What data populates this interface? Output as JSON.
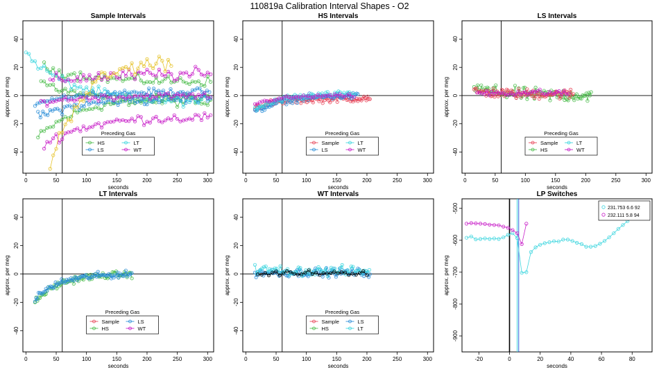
{
  "figure": {
    "title": "110819a   Calibration Interval Shapes - O2"
  },
  "chart_data": [
    {
      "type": "scatter",
      "title": "Sample Intervals",
      "xlabel": "seconds",
      "ylabel": "approx. per meg",
      "xlim": [
        -5,
        310
      ],
      "ylim": [
        -55,
        53
      ],
      "xticks": [
        0,
        50,
        100,
        150,
        200,
        250,
        300
      ],
      "yticks": [
        -40,
        -20,
        0,
        20,
        40
      ],
      "vline": 60,
      "hline": 0,
      "legend": {
        "title": "Preceding Gas",
        "position": "bottom-center",
        "ncol": 2,
        "entries": [
          {
            "label": "HS",
            "color": "#4dbd4d"
          },
          {
            "label": "LT",
            "color": "#3fd6df"
          },
          {
            "label": "LS",
            "color": "#2d8fd8"
          },
          {
            "label": "WT",
            "color": "#c81ec8"
          }
        ]
      },
      "series": [
        {
          "name": "HS run 1",
          "color": "#4dbd4d",
          "x_start": 20,
          "x_end": 305,
          "step": 5,
          "y_start": -30,
          "y_end": 0,
          "noise": 3
        },
        {
          "name": "HS run 2",
          "color": "#4dbd4d",
          "x_start": 25,
          "x_end": 305,
          "step": 5,
          "y_start": 10,
          "y_end": -5,
          "noise": 3
        },
        {
          "name": "HS run 3",
          "color": "#4dbd4d",
          "x_start": 30,
          "x_end": 305,
          "step": 5,
          "y_start": 20,
          "y_end": 10,
          "noise": 3
        },
        {
          "name": "LT run 1",
          "color": "#3fd6df",
          "x_start": 0,
          "x_end": 305,
          "step": 5,
          "y_start": 30,
          "y_end": -5,
          "noise": 3
        },
        {
          "name": "LS run 1",
          "color": "#2d8fd8",
          "x_start": 15,
          "x_end": 305,
          "step": 4,
          "y_start": -5,
          "y_end": 3,
          "noise": 2
        },
        {
          "name": "LS run 2",
          "color": "#2d8fd8",
          "x_start": 20,
          "x_end": 305,
          "step": 4,
          "y_start": -15,
          "y_end": -2,
          "noise": 3
        },
        {
          "name": "WT run 1",
          "color": "#c81ec8",
          "x_start": 30,
          "x_end": 305,
          "step": 5,
          "y_start": -35,
          "y_end": -15,
          "noise": 3
        },
        {
          "name": "WT run 2",
          "color": "#c81ec8",
          "x_start": 40,
          "x_end": 305,
          "step": 5,
          "y_start": 10,
          "y_end": 15,
          "noise": 4
        },
        {
          "name": "WT run 3",
          "color": "#c81ec8",
          "x_start": 25,
          "x_end": 305,
          "step": 5,
          "y_start": -5,
          "y_end": 0,
          "noise": 2
        },
        {
          "name": "Sample run 1",
          "color": "#e6c32b",
          "x_start": 40,
          "x_end": 240,
          "step": 5,
          "y_start": -50,
          "y_end": 25,
          "noise": 5
        }
      ]
    },
    {
      "type": "scatter",
      "title": "HS Intervals",
      "xlabel": "seconds",
      "ylabel": "approx. per meg",
      "xlim": [
        -5,
        310
      ],
      "ylim": [
        -55,
        53
      ],
      "xticks": [
        0,
        50,
        100,
        150,
        200,
        250,
        300
      ],
      "yticks": [
        -40,
        -20,
        0,
        20,
        40
      ],
      "vline": 60,
      "hline": 0,
      "legend": {
        "title": "Preceding Gas",
        "position": "bottom-center",
        "ncol": 2,
        "entries": [
          {
            "label": "Sample",
            "color": "#e8465a"
          },
          {
            "label": "LT",
            "color": "#3fd6df"
          },
          {
            "label": "LS",
            "color": "#2d8fd8"
          },
          {
            "label": "WT",
            "color": "#c81ec8"
          }
        ]
      },
      "series": [
        {
          "name": "Sample",
          "color": "#e8465a",
          "x_start": 15,
          "x_end": 205,
          "step": 2,
          "y_start": -8,
          "y_end": -2,
          "noise": 2
        },
        {
          "name": "LS",
          "color": "#2d8fd8",
          "x_start": 15,
          "x_end": 185,
          "step": 2,
          "y_start": -12,
          "y_end": 0,
          "noise": 2
        },
        {
          "name": "LT",
          "color": "#3fd6df",
          "x_start": 15,
          "x_end": 180,
          "step": 3,
          "y_start": -10,
          "y_end": 1,
          "noise": 2
        },
        {
          "name": "WT",
          "color": "#c81ec8",
          "x_start": 15,
          "x_end": 180,
          "step": 4,
          "y_start": -6,
          "y_end": 0,
          "noise": 1
        }
      ]
    },
    {
      "type": "scatter",
      "title": "LS Intervals",
      "xlabel": "seconds",
      "ylabel": "approx. per meg",
      "xlim": [
        -5,
        310
      ],
      "ylim": [
        -55,
        53
      ],
      "xticks": [
        0,
        50,
        100,
        150,
        200,
        250,
        300
      ],
      "yticks": [
        -40,
        -20,
        0,
        20,
        40
      ],
      "vline": 60,
      "hline": 0,
      "legend": {
        "title": "Preceding Gas",
        "position": "bottom-center",
        "ncol": 2,
        "entries": [
          {
            "label": "Sample",
            "color": "#e8465a"
          },
          {
            "label": "LT",
            "color": "#3fd6df"
          },
          {
            "label": "HS",
            "color": "#4dbd4d"
          },
          {
            "label": "WT",
            "color": "#c81ec8"
          }
        ]
      },
      "series": [
        {
          "name": "HS",
          "color": "#4dbd4d",
          "x_start": 15,
          "x_end": 210,
          "step": 2,
          "y_start": 5,
          "y_end": 0,
          "noise": 4
        },
        {
          "name": "Sample",
          "color": "#e8465a",
          "x_start": 15,
          "x_end": 180,
          "step": 2,
          "y_start": 3,
          "y_end": 1,
          "noise": 3
        },
        {
          "name": "WT",
          "color": "#c81ec8",
          "x_start": 20,
          "x_end": 175,
          "step": 4,
          "y_start": 2,
          "y_end": 2,
          "noise": 2
        }
      ]
    },
    {
      "type": "scatter",
      "title": "LT Intervals",
      "xlabel": "seconds",
      "ylabel": "approx. per meg",
      "xlim": [
        -5,
        310
      ],
      "ylim": [
        -55,
        53
      ],
      "xticks": [
        0,
        50,
        100,
        150,
        200,
        250,
        300
      ],
      "yticks": [
        -40,
        -20,
        0,
        20,
        40
      ],
      "vline": 60,
      "hline": 0,
      "legend": {
        "title": "Preceding Gas",
        "position": "bottom-center",
        "ncol": 2,
        "entries": [
          {
            "label": "Sample",
            "color": "#e8465a"
          },
          {
            "label": "LS",
            "color": "#2d8fd8"
          },
          {
            "label": "HS",
            "color": "#4dbd4d"
          },
          {
            "label": "WT",
            "color": "#c81ec8"
          }
        ]
      },
      "series": [
        {
          "name": "HS",
          "color": "#4dbd4d",
          "x_start": 15,
          "x_end": 175,
          "step": 2,
          "y_start": -20,
          "y_end": 0,
          "noise": 2
        },
        {
          "name": "LS",
          "color": "#2d8fd8",
          "x_start": 15,
          "x_end": 175,
          "step": 2,
          "y_start": -18,
          "y_end": 0,
          "noise": 2
        }
      ]
    },
    {
      "type": "scatter",
      "title": "WT Intervals",
      "xlabel": "seconds",
      "ylabel": "approx. per meg",
      "xlim": [
        -5,
        310
      ],
      "ylim": [
        -55,
        53
      ],
      "xticks": [
        0,
        50,
        100,
        150,
        200,
        250,
        300
      ],
      "yticks": [
        -40,
        -20,
        0,
        20,
        40
      ],
      "vline": 60,
      "hline": 0,
      "legend": {
        "title": "Preceding Gas",
        "position": "bottom-center",
        "ncol": 2,
        "entries": [
          {
            "label": "Sample",
            "color": "#e8465a"
          },
          {
            "label": "LS",
            "color": "#2d8fd8"
          },
          {
            "label": "HS",
            "color": "#4dbd4d"
          },
          {
            "label": "LT",
            "color": "#3fd6df"
          }
        ]
      },
      "series": [
        {
          "name": "LS",
          "color": "#2d8fd8",
          "x_start": 15,
          "x_end": 205,
          "step": 2,
          "y_start": 1,
          "y_end": 1,
          "noise": 2.5
        },
        {
          "name": "LT",
          "color": "#3fd6df",
          "x_start": 15,
          "x_end": 205,
          "step": 3,
          "y_start": 3,
          "y_end": 2,
          "noise": 3
        },
        {
          "name": "Black run",
          "color": "#000000",
          "x_start": 20,
          "x_end": 200,
          "step": 6,
          "y_start": 0,
          "y_end": 1,
          "noise": 1.5
        }
      ]
    },
    {
      "type": "scatter",
      "title": "LP Switches",
      "xlabel": "seconds",
      "ylabel": "approx. per meg",
      "xlim": [
        -31,
        93
      ],
      "ylim": [
        -950,
        -470
      ],
      "xticks": [
        -20,
        0,
        20,
        40,
        60,
        80
      ],
      "yticks": [
        -900,
        -800,
        -700,
        -600,
        -500
      ],
      "vline": 0,
      "markers": [
        5,
        6
      ],
      "legend": {
        "position": "top-right",
        "entries": [
          {
            "label": "231.753 6.6 92",
            "color": "#3fd6df"
          },
          {
            "label": "232.111 5.8 94",
            "color": "#c81ec8"
          }
        ]
      },
      "series": [
        {
          "name": "231.753 6.6 92",
          "color": "#3fd6df",
          "x": [
            -28,
            -25,
            -22,
            -19,
            -16,
            -13,
            -10,
            -7,
            -4,
            -1,
            2,
            5,
            8,
            11,
            14,
            17,
            20,
            23,
            26,
            29,
            32,
            35,
            38,
            41,
            44,
            47,
            50,
            53,
            56,
            59,
            62,
            65,
            68,
            71,
            74,
            77,
            80,
            83,
            86,
            89
          ],
          "y": [
            -592,
            -588,
            -597,
            -596,
            -594,
            -596,
            -594,
            -596,
            -591,
            -583,
            -578,
            -593,
            -702,
            -700,
            -637,
            -622,
            -614,
            -609,
            -606,
            -603,
            -604,
            -598,
            -598,
            -602,
            -608,
            -612,
            -620,
            -620,
            -618,
            -611,
            -602,
            -591,
            -578,
            -564,
            -552,
            -540,
            -528,
            -518,
            -512,
            -503
          ]
        },
        {
          "name": "232.111 5.8 94",
          "color": "#c81ec8",
          "x": [
            -28,
            -25,
            -22,
            -19,
            -16,
            -13,
            -10,
            -7,
            -4,
            -1,
            2,
            5,
            8,
            11
          ],
          "y": [
            -548,
            -546,
            -547,
            -548,
            -549,
            -551,
            -552,
            -553,
            -557,
            -561,
            -568,
            -578,
            -612,
            -548
          ]
        }
      ]
    }
  ]
}
